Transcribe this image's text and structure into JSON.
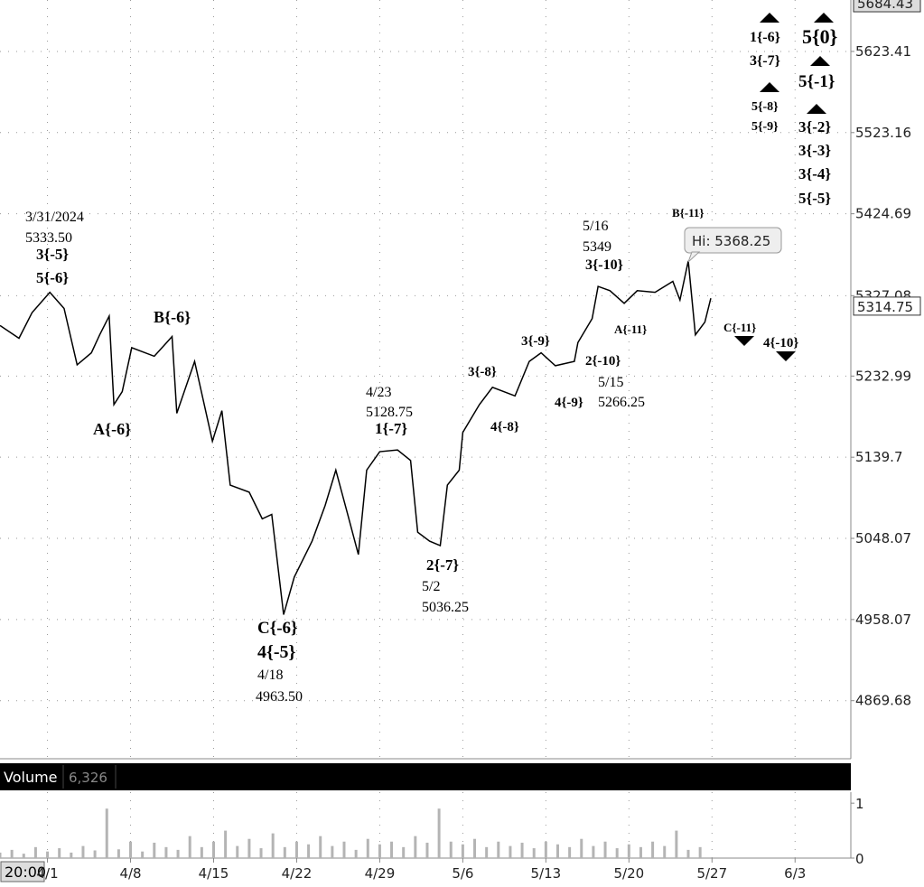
{
  "chart_data": [
    {
      "type": "line",
      "log": true,
      "grid": true,
      "series": [
        {
          "color": "#000000",
          "x": [
            -3,
            -1.4,
            -0.3,
            1.2,
            2.4,
            3.5,
            4.7,
            5.4,
            6.2,
            6.6,
            7.3,
            8.1,
            10,
            11.5,
            11.9,
            13.4,
            14.9,
            15.7,
            16.4,
            18,
            19.1,
            19.9,
            20.9,
            21.8,
            23.3,
            24.4,
            25.3,
            26.3,
            27.2,
            27.9,
            29,
            30.5,
            31.6,
            32.2,
            33.2,
            34.1,
            34.7,
            35.7,
            36,
            37.4,
            38.5,
            40.4,
            41.6,
            42.6,
            43.8,
            45.4,
            45.7,
            46.9,
            47.4,
            48.4,
            49.6,
            50.7,
            52.2,
            53.7,
            54.3,
            55,
            55.6,
            56.4,
            56.9
          ],
          "values": [
            5292,
            5277,
            5307,
            5331,
            5312,
            5246,
            5260,
            5281,
            5303,
            5200,
            5215,
            5266,
            5256,
            5279,
            5190,
            5250,
            5158,
            5193,
            5108,
            5100,
            5070,
            5075,
            4963.5,
            5005,
            5045,
            5085,
            5125,
            5075,
            5030,
            5125,
            5146,
            5148,
            5136,
            5055,
            5045,
            5040,
            5108,
            5125,
            5168,
            5200,
            5220,
            5210,
            5250,
            5260,
            5245,
            5250,
            5272,
            5300,
            5338,
            5333,
            5318,
            5333,
            5331,
            5344,
            5322,
            5368.25,
            5281,
            5296,
            5324
          ]
        }
      ],
      "xlim": [
        -3,
        68.7
      ],
      "ylim": [
        4807.4,
        5687.9
      ],
      "yticks": [
        5623.41,
        5523.16,
        5424.69,
        5327.08,
        5232.99,
        5139.7,
        5048.07,
        4958.07,
        4869.68
      ],
      "markers": [
        5684.43,
        5314.75
      ],
      "hi_label": "Hi: 5368.25",
      "annotations": [
        "3/31/2024",
        "5333.50",
        "3{-5}",
        "5{-6}",
        "B{-6}",
        "A{-6}",
        "4/23",
        "5128.75",
        "1{-7}",
        "C{-6}",
        "4{-5}",
        "4/18",
        "4963.50",
        "2{-7}",
        "5/2",
        "5036.25",
        "3{-8}",
        "4{-8}",
        "3{-9}",
        "4{-9}",
        "2{-10}",
        "5/15",
        "5266.25",
        "5/16",
        "5349",
        "3{-10}",
        "A{-11}",
        "B{-11}",
        "C{-11}",
        "4{-10}",
        "1{-6}",
        "3{-7}",
        "5{0}",
        "5{-1}",
        "5{-8}",
        "5{-9}",
        "3{-2}",
        "3{-3}",
        "3{-4}",
        "5{-5}"
      ]
    },
    {
      "type": "bar",
      "title": "Volume",
      "last_value": "6,326",
      "time_label": "20:00",
      "color": "#b4b4b4",
      "x": [
        -3,
        -2,
        -1,
        0,
        1,
        2,
        3,
        4,
        5,
        6,
        7,
        8,
        9,
        10,
        11,
        12,
        13,
        14,
        15,
        16,
        17,
        18,
        19,
        20,
        21,
        22,
        23,
        24,
        25,
        26,
        27,
        28,
        29,
        30,
        31,
        32,
        33,
        34,
        35,
        36,
        37,
        38,
        39,
        40,
        41,
        42,
        43,
        44,
        45,
        46,
        47,
        48,
        49,
        50,
        51,
        52,
        53,
        54,
        55,
        56
      ],
      "values": [
        0.1,
        0.15,
        0.08,
        0.2,
        0.12,
        0.18,
        0.1,
        0.22,
        0.14,
        0.9,
        0.16,
        0.3,
        0.12,
        0.28,
        0.2,
        0.15,
        0.4,
        0.2,
        0.3,
        0.5,
        0.22,
        0.35,
        0.18,
        0.45,
        0.2,
        0.3,
        0.25,
        0.4,
        0.22,
        0.3,
        0.15,
        0.35,
        0.25,
        0.3,
        0.2,
        0.4,
        0.28,
        0.9,
        0.3,
        0.25,
        0.35,
        0.2,
        0.3,
        0.22,
        0.28,
        0.18,
        0.3,
        0.25,
        0.2,
        0.35,
        0.22,
        0.3,
        0.18,
        0.25,
        0.2,
        0.3,
        0.22,
        0.5,
        0.15,
        0.2
      ],
      "xlim": [
        -3,
        68.7
      ],
      "ylim": [
        0,
        1.2
      ],
      "yticks": [
        0,
        1
      ],
      "xticks": [
        {
          "value": 1,
          "label": "4/1"
        },
        {
          "value": 8,
          "label": "4/8"
        },
        {
          "value": 15,
          "label": "4/15"
        },
        {
          "value": 22,
          "label": "4/22"
        },
        {
          "value": 29,
          "label": "4/29"
        },
        {
          "value": 36,
          "label": "5/6"
        },
        {
          "value": 43,
          "label": "5/13"
        },
        {
          "value": 50,
          "label": "5/20"
        },
        {
          "value": 57,
          "label": "5/27"
        },
        {
          "value": 64,
          "label": "6/3"
        }
      ]
    }
  ]
}
